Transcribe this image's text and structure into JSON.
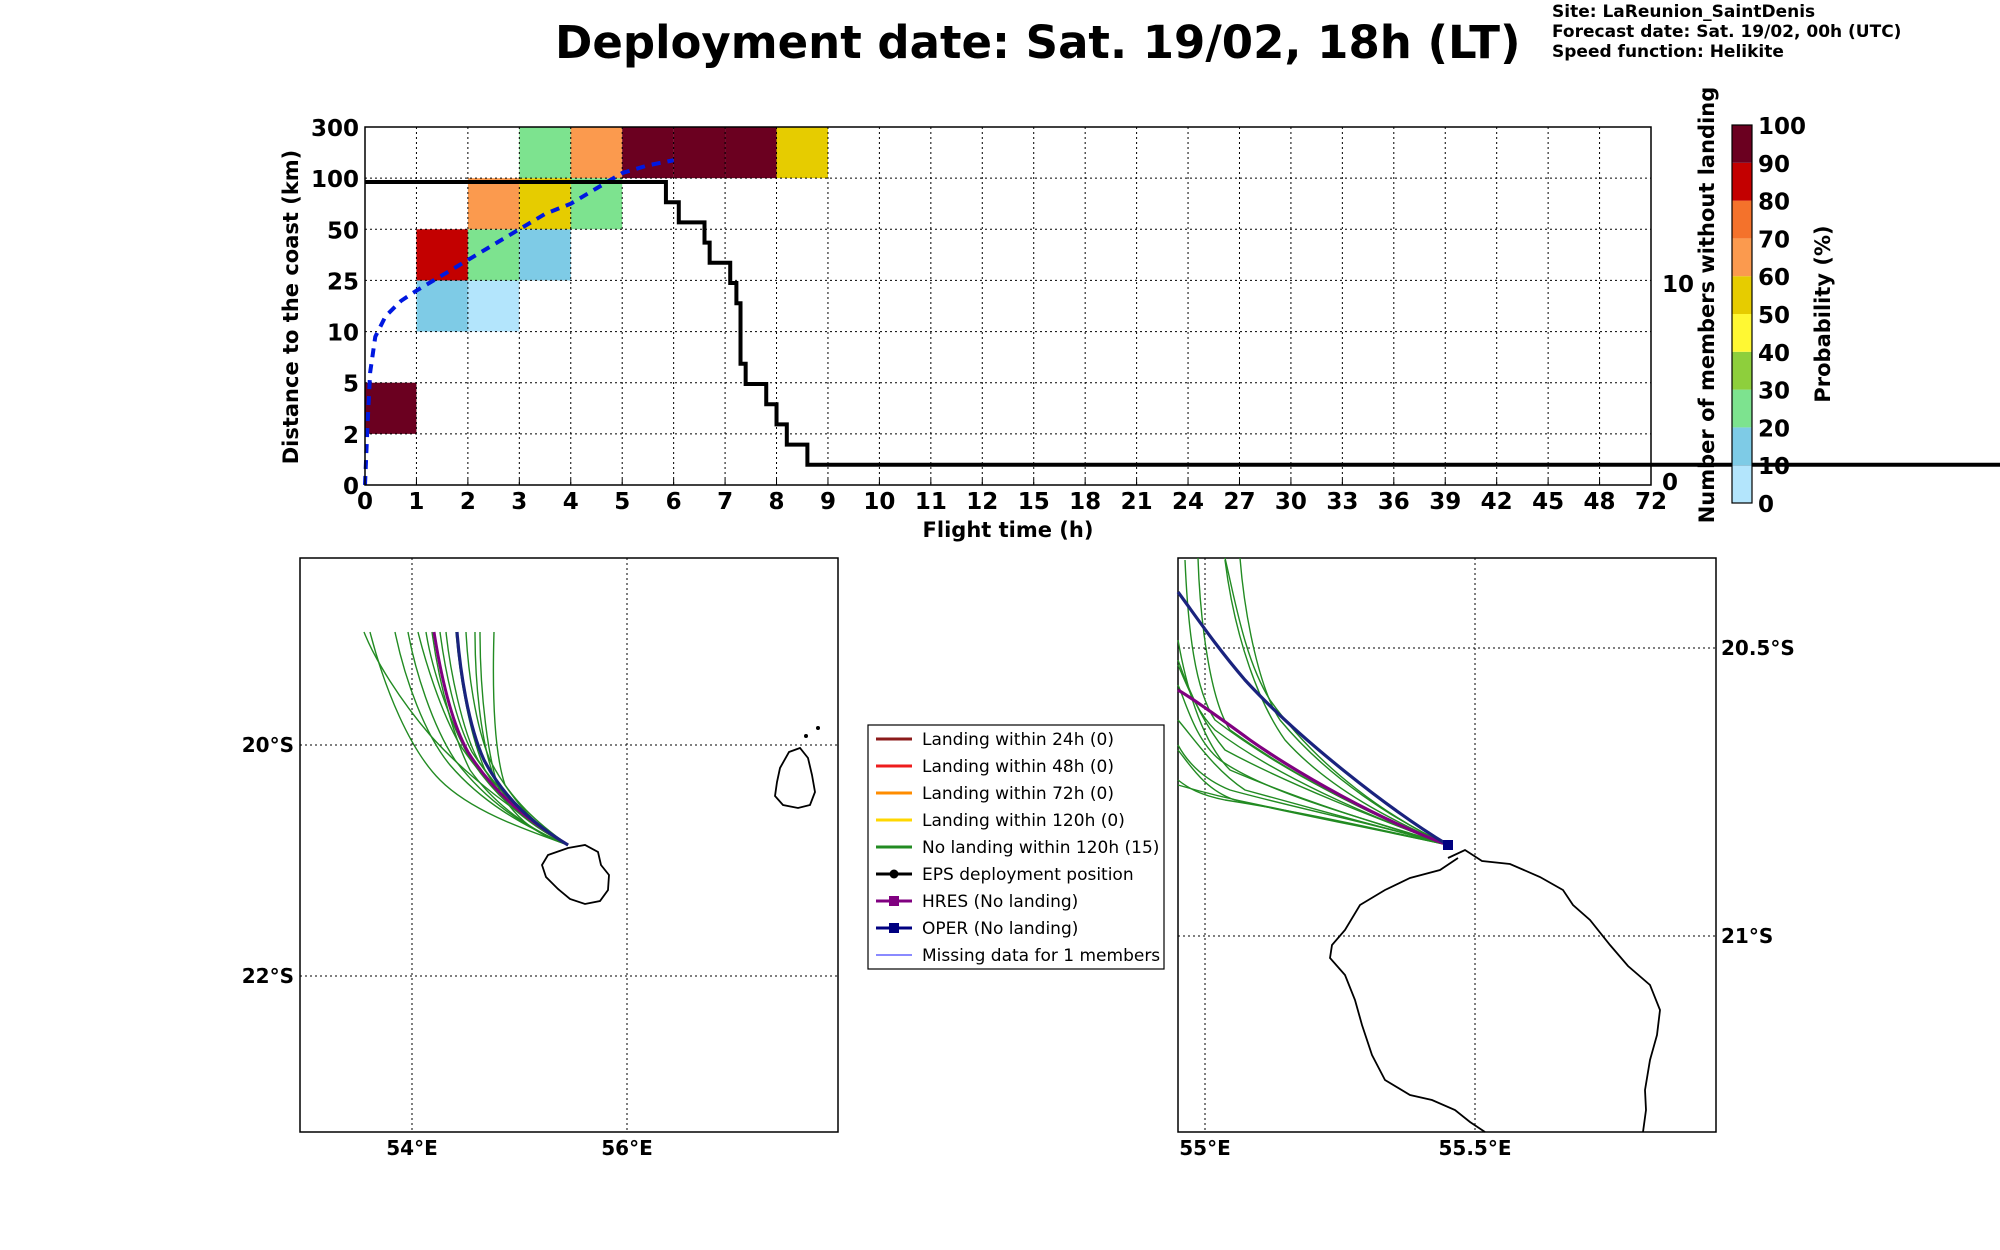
{
  "header": {
    "title": "Deployment date: Sat. 19/02, 18h (LT)",
    "site": "Site: LaReunion_SaintDenis",
    "forecast": "Forecast date: Sat. 19/02, 00h (UTC)",
    "speed": "Speed function: Helikite"
  },
  "chart_data": [
    {
      "type": "heatmap",
      "xlabel": "Flight time (h)",
      "ylabel": "Distance to the coast (km)",
      "y2label": "Number of members without landing",
      "x_ticks": [
        "0",
        "1",
        "2",
        "3",
        "4",
        "5",
        "6",
        "7",
        "8",
        "9",
        "10",
        "11",
        "12",
        "15",
        "18",
        "21",
        "24",
        "27",
        "30",
        "33",
        "36",
        "39",
        "42",
        "45",
        "48",
        "72"
      ],
      "y_ticks": [
        "0",
        "2",
        "5",
        "10",
        "25",
        "50",
        "100",
        "300"
      ],
      "y2_ticks": [
        "0",
        "10"
      ],
      "grid": true,
      "cells": [
        {
          "x_bin": 0,
          "y_bin": 1,
          "prob": 95
        },
        {
          "x_bin": 1,
          "y_bin": 3,
          "prob": 15
        },
        {
          "x_bin": 1,
          "y_bin": 4,
          "prob": 85
        },
        {
          "x_bin": 2,
          "y_bin": 3,
          "prob": 5
        },
        {
          "x_bin": 2,
          "y_bin": 4,
          "prob": 25
        },
        {
          "x_bin": 2,
          "y_bin": 5,
          "prob": 65
        },
        {
          "x_bin": 3,
          "y_bin": 4,
          "prob": 15
        },
        {
          "x_bin": 3,
          "y_bin": 5,
          "prob": 55
        },
        {
          "x_bin": 3,
          "y_bin": 6,
          "prob": 25
        },
        {
          "x_bin": 4,
          "y_bin": 5,
          "prob": 25
        },
        {
          "x_bin": 4,
          "y_bin": 6,
          "prob": 65
        },
        {
          "x_bin": 5,
          "y_bin": 6,
          "prob": 95
        },
        {
          "x_bin": 6,
          "y_bin": 6,
          "prob": 95
        },
        {
          "x_bin": 7,
          "y_bin": 6,
          "prob": 95
        },
        {
          "x_bin": 8,
          "y_bin": 6,
          "prob": 55
        }
      ],
      "members_without_landing_line": {
        "x_bin": [
          0,
          5.75,
          5.85,
          6.0,
          6.1,
          6.4,
          6.6,
          6.7,
          6.9,
          7.1,
          7.2,
          7.22,
          7.3,
          7.4,
          7.7,
          7.8,
          8.0,
          8.2,
          8.6,
          72
        ],
        "members": [
          15,
          15,
          14,
          14,
          13,
          13,
          12,
          11,
          11,
          10,
          10,
          9,
          6,
          5,
          5,
          4,
          3,
          2,
          1,
          1
        ]
      },
      "median_distance_curve": {
        "x_bin": [
          0,
          0.05,
          0.1,
          0.2,
          0.4,
          0.7,
          1.0,
          1.5,
          2.0,
          2.5,
          3.0,
          3.5,
          4.0,
          4.5,
          5.0,
          5.5,
          6.0
        ],
        "y_bin": [
          0,
          1.2,
          2.2,
          2.9,
          3.3,
          3.6,
          3.8,
          4.1,
          4.4,
          4.7,
          5.0,
          5.3,
          5.5,
          5.8,
          6.1,
          6.25,
          6.35
        ]
      },
      "colorbar": {
        "label": "Probability (%)",
        "ticks": [
          "0",
          "10",
          "20",
          "30",
          "40",
          "50",
          "60",
          "70",
          "80",
          "90",
          "100"
        ],
        "colors": [
          "#b3e5fc",
          "#7ecbe6",
          "#7de38f",
          "#8ecf3c",
          "#fff833",
          "#e6cc00",
          "#fb9a4e",
          "#f4722b",
          "#c30000",
          "#6b0020"
        ]
      }
    },
    {
      "type": "map",
      "x_ticks": [
        "54°E",
        "56°E"
      ],
      "y_ticks": [
        "20°S",
        "22°S"
      ]
    },
    {
      "type": "map",
      "x_ticks": [
        "55°E",
        "55.5°E"
      ],
      "y_ticks": [
        "20.5°S",
        "21°S"
      ]
    }
  ],
  "legend": {
    "items": [
      {
        "label": "Landing within 24h (0)",
        "color": "#8b1a1a",
        "icon": "line"
      },
      {
        "label": "Landing within 48h (0)",
        "color": "#ee1c1c",
        "icon": "line"
      },
      {
        "label": "Landing within 72h (0)",
        "color": "#ff8c00",
        "icon": "line"
      },
      {
        "label": "Landing within 120h (0)",
        "color": "#ffd700",
        "icon": "line"
      },
      {
        "label": "No landing within 120h (15)",
        "color": "#228b22",
        "icon": "line"
      },
      {
        "label": "EPS deployment position",
        "color": "#000000",
        "icon": "dot"
      },
      {
        "label": "HRES (No landing)",
        "color": "#800080",
        "icon": "square"
      },
      {
        "label": "OPER (No landing)",
        "color": "#000080",
        "icon": "square"
      },
      {
        "label": "Missing data for 1 members",
        "color": "#4444ff",
        "icon": "thin"
      }
    ]
  }
}
